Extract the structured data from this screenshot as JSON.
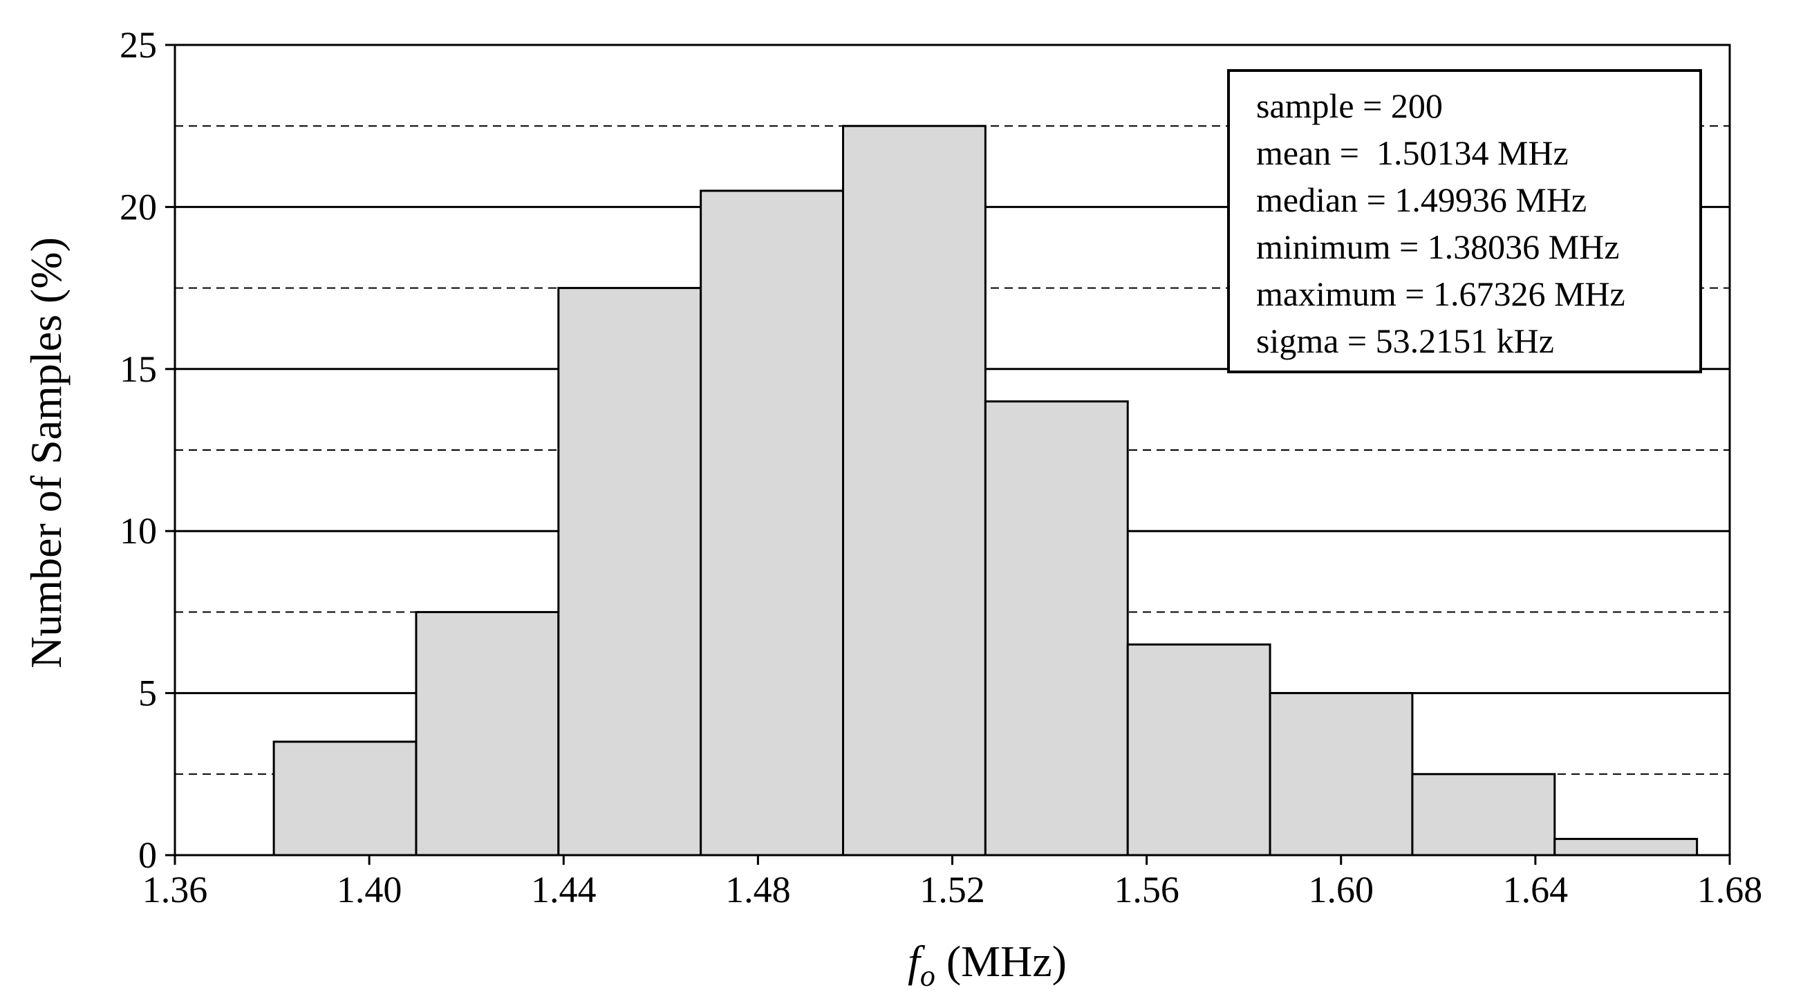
{
  "chart_data": {
    "type": "bar",
    "subtype": "histogram",
    "title": "",
    "xlabel": {
      "symbol": "f",
      "subscript": "o",
      "unit": " (MHz)"
    },
    "ylabel": "Number of Samples (%)",
    "xlim": [
      1.36,
      1.68
    ],
    "ylim": [
      0,
      25
    ],
    "xticks": [
      "1.36",
      "1.40",
      "1.44",
      "1.48",
      "1.52",
      "1.56",
      "1.60",
      "1.64",
      "1.68"
    ],
    "yticks": [
      "0",
      "5",
      "10",
      "15",
      "20",
      "25"
    ],
    "grid_major": [
      5,
      10,
      15,
      20
    ],
    "grid_minor": [
      2.5,
      7.5,
      12.5,
      17.5,
      22.5
    ],
    "bins": [
      {
        "x0": 1.38036,
        "x1": 1.40965,
        "value": 3.5
      },
      {
        "x0": 1.40965,
        "x1": 1.43894,
        "value": 7.5
      },
      {
        "x0": 1.43894,
        "x1": 1.46823,
        "value": 17.5
      },
      {
        "x0": 1.46823,
        "x1": 1.49752,
        "value": 20.5
      },
      {
        "x0": 1.49752,
        "x1": 1.52681,
        "value": 22.5
      },
      {
        "x0": 1.52681,
        "x1": 1.5561,
        "value": 14.0
      },
      {
        "x0": 1.5561,
        "x1": 1.58539,
        "value": 6.5
      },
      {
        "x0": 1.58539,
        "x1": 1.61468,
        "value": 5.0
      },
      {
        "x0": 1.61468,
        "x1": 1.64397,
        "value": 2.5
      },
      {
        "x0": 1.64397,
        "x1": 1.67326,
        "value": 0.5
      }
    ],
    "stats": [
      "sample = 200",
      "mean =  1.50134 MHz",
      "median = 1.49936 MHz",
      "minimum = 1.38036 MHz",
      "maximum = 1.67326 MHz",
      "sigma = 53.2151 kHz"
    ],
    "legend_position": "top-right"
  },
  "colors": {
    "bar_fill": "#d9d9d9",
    "bar_stroke": "#000000",
    "axis": "#000000",
    "grid": "#000000"
  }
}
